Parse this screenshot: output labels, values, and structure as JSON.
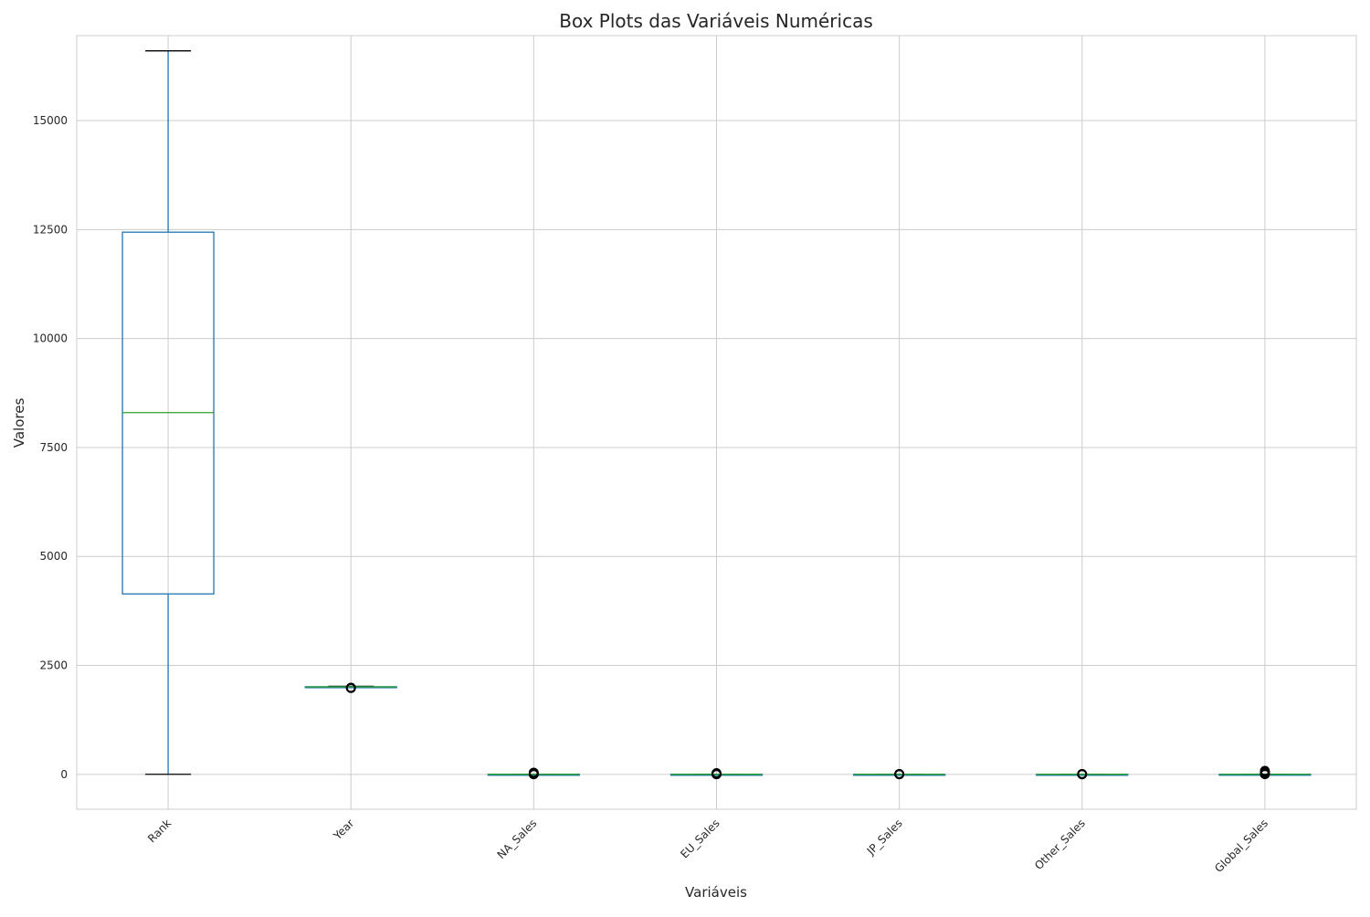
{
  "chart_data": {
    "type": "box",
    "title": "Box Plots das Variáveis Numéricas",
    "xlabel": "Variáveis",
    "ylabel": "Valores",
    "ylim": [
      -800,
      16950
    ],
    "yticks": [
      0,
      2500,
      5000,
      7500,
      10000,
      12500,
      15000
    ],
    "grid": true,
    "colors": {
      "box": "#1f77b4",
      "median": "#2ca02c",
      "whisker": "#1f77b4",
      "cap": "#000000",
      "flier": "#000000",
      "grid": "#cccccc",
      "frame": "#cccccc"
    },
    "categories": [
      "Rank",
      "Year",
      "NA_Sales",
      "EU_Sales",
      "JP_Sales",
      "Other_Sales",
      "Global_Sales"
    ],
    "boxes": [
      {
        "name": "Rank",
        "whislo": 1,
        "q1": 4140,
        "med": 8300,
        "q3": 12440,
        "whishi": 16600,
        "fliers": []
      },
      {
        "name": "Year",
        "whislo": 1990,
        "q1": 2003,
        "med": 2007,
        "q3": 2010,
        "whishi": 2020,
        "fliers": [
          1980,
          1982,
          1984,
          1986,
          1988
        ]
      },
      {
        "name": "NA_Sales",
        "whislo": 0,
        "q1": 0,
        "med": 0.08,
        "q3": 0.24,
        "whishi": 0.6,
        "fliers": [
          1,
          5,
          10,
          20,
          30,
          41
        ]
      },
      {
        "name": "EU_Sales",
        "whislo": 0,
        "q1": 0,
        "med": 0.02,
        "q3": 0.11,
        "whishi": 0.27,
        "fliers": [
          1,
          5,
          10,
          20,
          29
        ]
      },
      {
        "name": "JP_Sales",
        "whislo": 0,
        "q1": 0,
        "med": 0,
        "q3": 0.04,
        "whishi": 0.1,
        "fliers": [
          1,
          3,
          6,
          10
        ]
      },
      {
        "name": "Other_Sales",
        "whislo": 0,
        "q1": 0,
        "med": 0.01,
        "q3": 0.04,
        "whishi": 0.1,
        "fliers": [
          1,
          3,
          6,
          10
        ]
      },
      {
        "name": "Global_Sales",
        "whislo": 0,
        "q1": 0.06,
        "med": 0.17,
        "q3": 0.47,
        "whishi": 1.1,
        "fliers": [
          2,
          10,
          20,
          40,
          60,
          82
        ]
      }
    ]
  }
}
